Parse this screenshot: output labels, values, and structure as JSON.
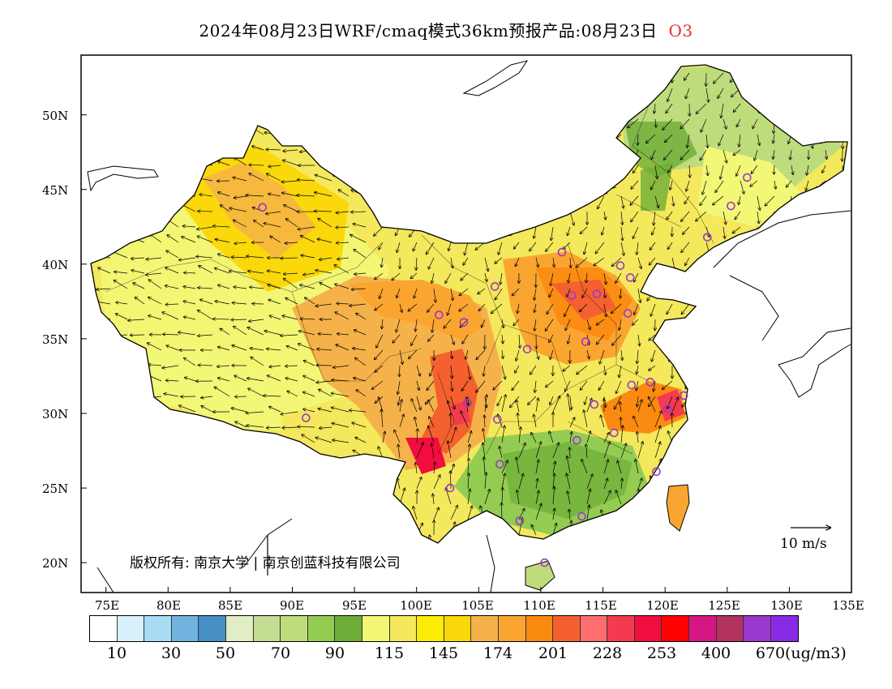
{
  "title": {
    "main": "2024年08月23日WRF/cmaq模式36km预报产品:08月23日",
    "pollutant": "O3",
    "pollutant_color": "#e03030"
  },
  "map": {
    "lat_labels": [
      "50N",
      "45N",
      "40N",
      "35N",
      "30N",
      "25N",
      "20N"
    ],
    "lon_labels": [
      "75E",
      "80E",
      "85E",
      "90E",
      "95E",
      "100E",
      "105E",
      "110E",
      "115E",
      "120E",
      "125E",
      "130E",
      "135E"
    ],
    "copyright": "版权所有: 南京大学 | 南京创蓝科技有限公司",
    "wind_scale_label": "10 m/s",
    "stations": [
      [
        87.6,
        43.8
      ],
      [
        101.8,
        36.6
      ],
      [
        103.8,
        36.1
      ],
      [
        106.3,
        38.5
      ],
      [
        111.7,
        40.8
      ],
      [
        112.5,
        37.9
      ],
      [
        114.5,
        38.0
      ],
      [
        116.4,
        39.9
      ],
      [
        117.2,
        39.1
      ],
      [
        123.4,
        41.8
      ],
      [
        125.3,
        43.9
      ],
      [
        126.6,
        45.8
      ],
      [
        117.0,
        36.7
      ],
      [
        113.6,
        34.8
      ],
      [
        108.9,
        34.3
      ],
      [
        104.1,
        30.7
      ],
      [
        106.5,
        29.6
      ],
      [
        91.1,
        29.7
      ],
      [
        102.7,
        25.0
      ],
      [
        106.7,
        26.6
      ],
      [
        108.3,
        22.8
      ],
      [
        113.3,
        23.1
      ],
      [
        110.3,
        20.0
      ],
      [
        112.9,
        28.2
      ],
      [
        115.9,
        28.7
      ],
      [
        114.3,
        30.6
      ],
      [
        117.3,
        31.9
      ],
      [
        118.8,
        32.1
      ],
      [
        120.2,
        30.3
      ],
      [
        121.5,
        31.2
      ],
      [
        119.3,
        26.1
      ]
    ]
  },
  "colorbar": {
    "colors": [
      "#ffffff",
      "#d7f0fb",
      "#a8dcf5",
      "#72b4e0",
      "#468fc4",
      "#e1edc4",
      "#c3dc92",
      "#bedc7c",
      "#94cc52",
      "#6eac38",
      "#f2f775",
      "#f4e85c",
      "#fcec07",
      "#fad80b",
      "#f6b24a",
      "#fba531",
      "#fb8b10",
      "#f4602f",
      "#ff6e6e",
      "#f33a4f",
      "#f10d3e",
      "#ff0303",
      "#d51783",
      "#b23260",
      "#9a37cc",
      "#892be5"
    ],
    "labels": [
      "10",
      "30",
      "50",
      "70",
      "90",
      "115",
      "145",
      "174",
      "201",
      "228",
      "253",
      "400",
      "670"
    ],
    "unit": "(ug/m3)"
  }
}
